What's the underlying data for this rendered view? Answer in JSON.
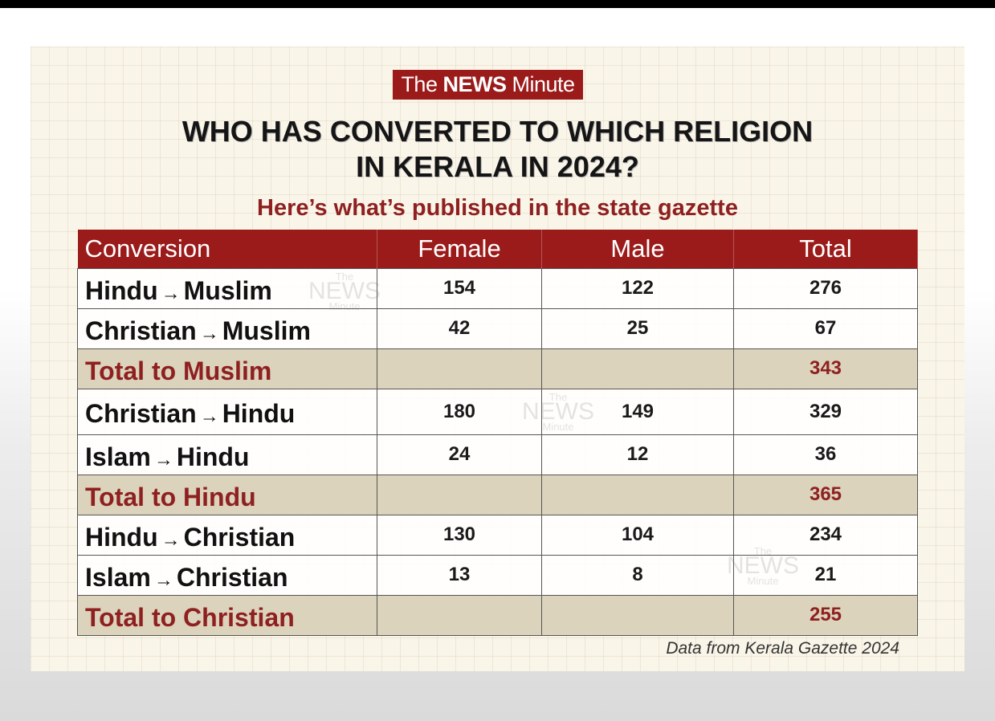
{
  "brand": {
    "prefix": "The",
    "name": "NEWS",
    "suffix": "Minute"
  },
  "title_line1": "WHO HAS CONVERTED TO WHICH RELIGION",
  "title_line2": "IN KERALA IN 2024?",
  "subtitle": "Here’s what’s published in the state gazette",
  "source": "Data from Kerala Gazette 2024",
  "colors": {
    "brand_red": "#9b1b1b",
    "total_row_bg": "#dcd3bd",
    "total_text": "#8e2020"
  },
  "chart_data": {
    "type": "table",
    "columns": [
      "Conversion",
      "Female",
      "Male",
      "Total"
    ],
    "rows": [
      {
        "from": "Hindu",
        "to": "Muslim",
        "arrow": "→",
        "female": "154",
        "male": "122",
        "total": "276",
        "is_total": false
      },
      {
        "from": "Christian",
        "to": "Muslim",
        "arrow": "→",
        "female": "42",
        "male": "25",
        "total": "67",
        "is_total": false
      },
      {
        "label": "Total to Muslim",
        "female": "",
        "male": "",
        "total": "343",
        "is_total": true
      },
      {
        "from": "Christian",
        "to": "Hindu",
        "arrow": "→",
        "female": "180",
        "male": "149",
        "total": "329",
        "is_total": false
      },
      {
        "from": "Islam",
        "to": "Hindu",
        "arrow": "→",
        "female": "24",
        "male": "12",
        "total": "36",
        "is_total": false
      },
      {
        "label": "Total to Hindu",
        "female": "",
        "male": "",
        "total": "365",
        "is_total": true
      },
      {
        "from": "Hindu",
        "to": "Christian",
        "arrow": "→",
        "female": "130",
        "male": "104",
        "total": "234",
        "is_total": false
      },
      {
        "from": "Islam",
        "to": "Christian",
        "arrow": "→",
        "female": "13",
        "male": "8",
        "total": "21",
        "is_total": false
      },
      {
        "label": "Total to Christian",
        "female": "",
        "male": "",
        "total": "255",
        "is_total": true
      }
    ]
  }
}
